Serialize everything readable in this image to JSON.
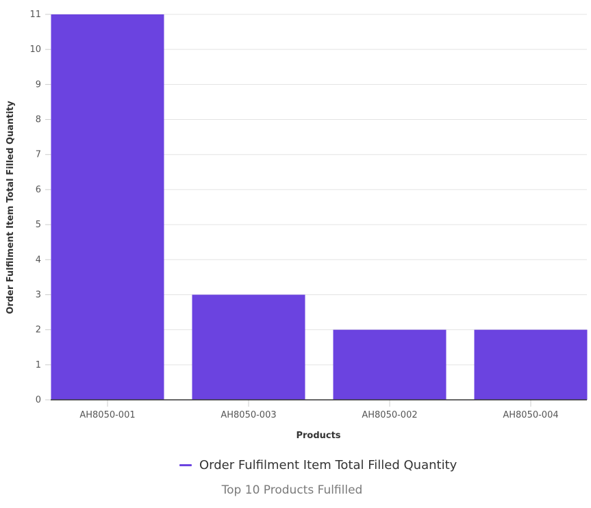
{
  "chart_data": {
    "type": "bar",
    "categories": [
      "AH8050-001",
      "AH8050-003",
      "AH8050-002",
      "AH8050-004"
    ],
    "series": [
      {
        "name": "Order Fulfilment Item Total Filled Quantity",
        "values": [
          11,
          3,
          2,
          2
        ]
      }
    ],
    "xlabel": "Products",
    "ylabel": "Order Fulfilment Item Total Filled Quantity",
    "ylim": [
      0,
      11
    ],
    "yticks": [
      0,
      1,
      2,
      3,
      4,
      5,
      6,
      7,
      8,
      9,
      10,
      11
    ],
    "grid": true,
    "legend_position": "bottom",
    "bar_color": "#6b43e0",
    "caption": "Top 10 Products Fulfilled"
  }
}
